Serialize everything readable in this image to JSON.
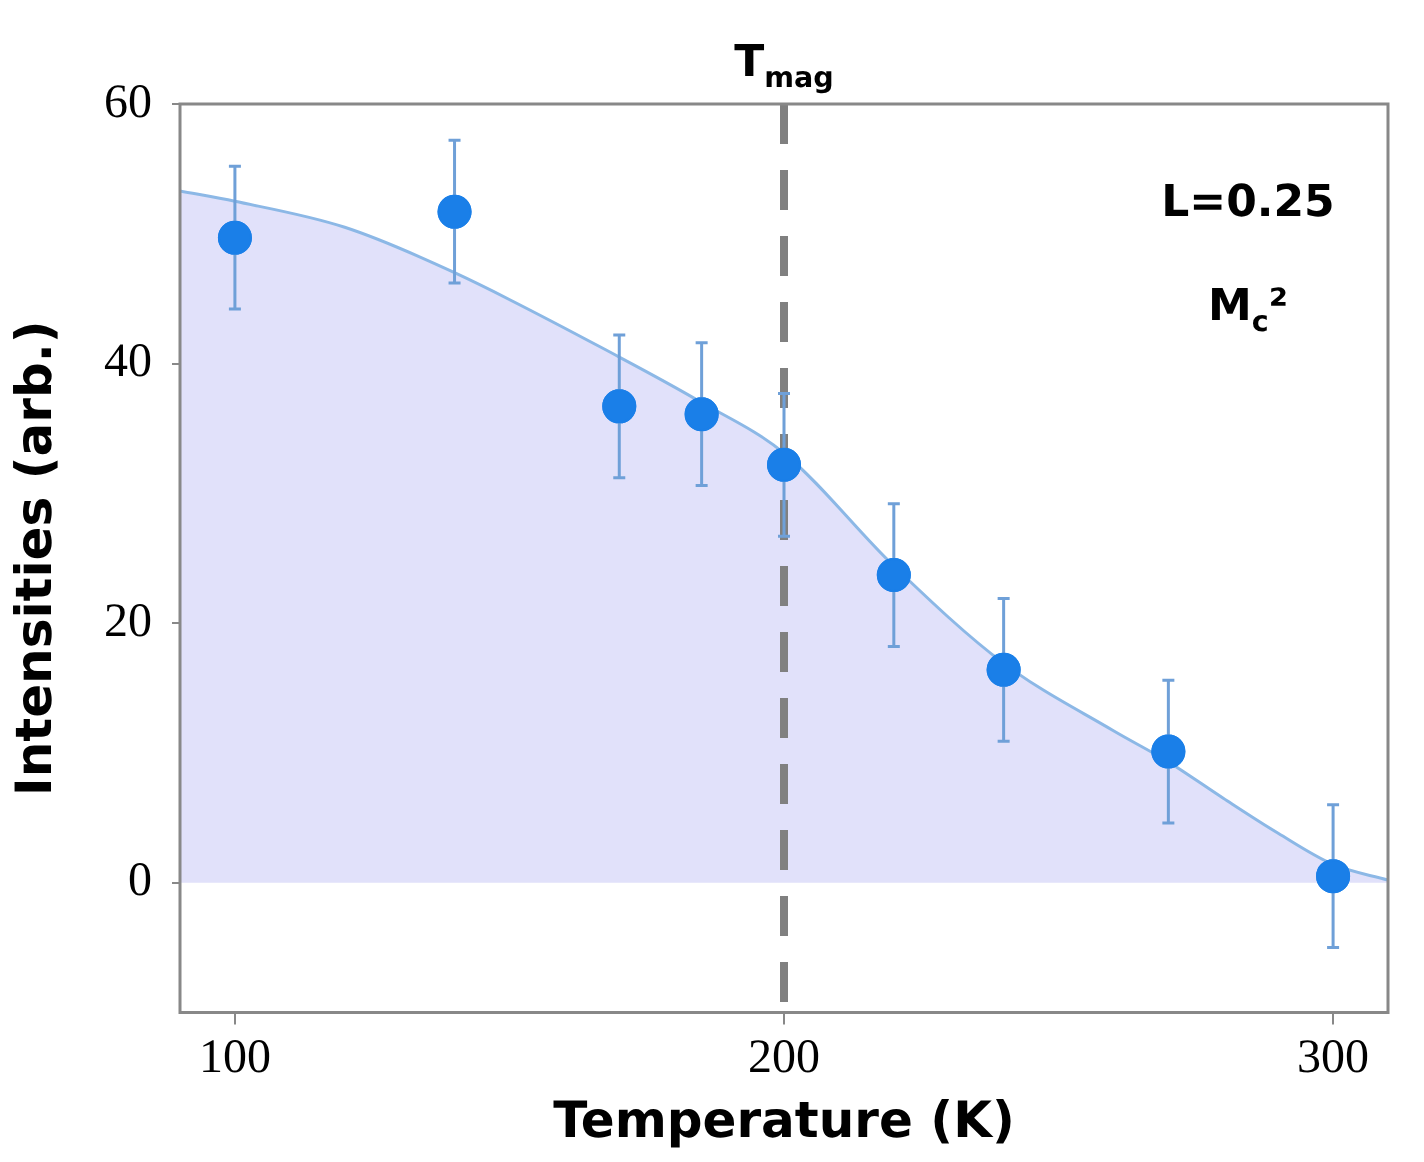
{
  "chart_data": {
    "type": "scatter",
    "xlabel": "Temperature (K)",
    "ylabel": "Intensities (arb.)",
    "xlim": [
      90,
      310
    ],
    "xticks": [
      100,
      200,
      300
    ],
    "ylim": [
      -10,
      60
    ],
    "yticks": [
      0,
      20,
      40,
      60
    ],
    "grid": false,
    "legend": false,
    "series": [
      {
        "type": "area",
        "marker": "none",
        "color": "#8cb8e6",
        "x": [
          90,
          100,
          120,
          140,
          170,
          185,
          200,
          220,
          240,
          260,
          270,
          280,
          290,
          300,
          310
        ],
        "values": [
          53.3,
          52.5,
          50.5,
          47,
          40.5,
          37,
          33.1,
          24.4,
          16.9,
          11.7,
          9.3,
          6.5,
          3.8,
          1.4,
          0.2
        ]
      },
      {
        "marker": "circle",
        "color": "#1a7fe8",
        "x": [
          100,
          140,
          170,
          185,
          200,
          220,
          240,
          270,
          300
        ],
        "values": [
          49.7,
          51.7,
          36.7,
          36.1,
          32.2,
          23.7,
          16.4,
          10.1,
          0.5
        ],
        "errors": [
          5.5,
          5.5,
          5.5,
          5.5,
          5.5,
          5.5,
          5.5,
          5.5,
          5.5
        ]
      }
    ],
    "ref_lines": [
      {
        "axis": "x",
        "value": 200,
        "label": "T$_{mag}$",
        "color": "#808080",
        "line_style": "dashed"
      }
    ],
    "annotations": [
      "L=0.25",
      "M$_{c}$²"
    ]
  }
}
